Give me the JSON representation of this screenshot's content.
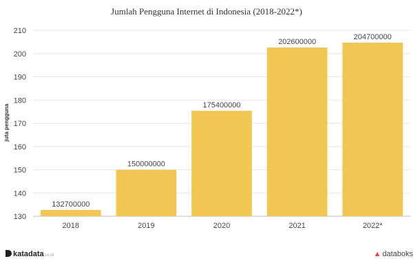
{
  "chart_data": {
    "type": "bar",
    "title": "Jumlah Pengguna Internet di Indonesia (2018-2022*)",
    "ylabel": "juta pengguna",
    "xlabel": "",
    "categories": [
      "2018",
      "2019",
      "2020",
      "2021",
      "2022*"
    ],
    "values": [
      132.7,
      150.0,
      175.4,
      202.6,
      204.7
    ],
    "data_labels": [
      "132700000",
      "150000000",
      "175400000",
      "202600000",
      "204700000"
    ],
    "yticks": [
      130,
      140,
      150,
      160,
      170,
      180,
      190,
      200,
      210
    ],
    "ylim": [
      130,
      210
    ],
    "grid": true,
    "bar_color": "#f2c652"
  },
  "footer": {
    "left_brand": "katadata",
    "left_sub": ".co.id",
    "right_brand": "databoks",
    "right_icon": "databoks-logo-icon"
  }
}
